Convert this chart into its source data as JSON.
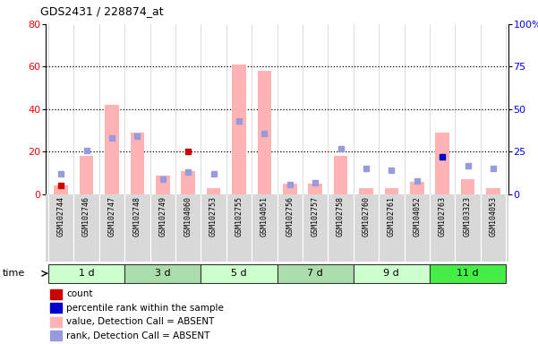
{
  "title": "GDS2431 / 228874_at",
  "samples": [
    "GSM102744",
    "GSM102746",
    "GSM102747",
    "GSM102748",
    "GSM102749",
    "GSM104060",
    "GSM102753",
    "GSM102755",
    "GSM104051",
    "GSM102756",
    "GSM102757",
    "GSM102758",
    "GSM102760",
    "GSM102761",
    "GSM104052",
    "GSM102763",
    "GSM103323",
    "GSM104053"
  ],
  "groups": [
    {
      "label": "1 d",
      "indices": [
        0,
        1,
        2
      ],
      "color": "#ccffcc"
    },
    {
      "label": "3 d",
      "indices": [
        3,
        4,
        5
      ],
      "color": "#aaddaa"
    },
    {
      "label": "5 d",
      "indices": [
        6,
        7,
        8
      ],
      "color": "#ccffcc"
    },
    {
      "label": "7 d",
      "indices": [
        9,
        10,
        11
      ],
      "color": "#aaddaa"
    },
    {
      "label": "9 d",
      "indices": [
        12,
        13,
        14
      ],
      "color": "#ccffcc"
    },
    {
      "label": "11 d",
      "indices": [
        15,
        16,
        17
      ],
      "color": "#44ee44"
    }
  ],
  "bar_values_absent": [
    4,
    18,
    42,
    29,
    9,
    11,
    3,
    61,
    58,
    5,
    5,
    18,
    3,
    3,
    6,
    29,
    7,
    3
  ],
  "rank_absent": [
    12,
    26,
    33,
    34,
    9,
    13,
    12,
    43,
    36,
    6,
    7,
    27,
    15,
    14,
    8,
    22,
    17,
    15
  ],
  "count_values": [
    4,
    null,
    null,
    null,
    null,
    20,
    null,
    null,
    null,
    null,
    null,
    null,
    null,
    null,
    null,
    null,
    null,
    null
  ],
  "percentile_rank": [
    null,
    null,
    null,
    null,
    null,
    null,
    null,
    null,
    null,
    null,
    null,
    null,
    null,
    null,
    null,
    22,
    null,
    null
  ],
  "ylim_left": [
    0,
    80
  ],
  "ylim_right": [
    0,
    100
  ],
  "yticks_left": [
    0,
    20,
    40,
    60,
    80
  ],
  "yticks_right": [
    0,
    25,
    50,
    75,
    100
  ],
  "ytick_labels_right": [
    "0",
    "25",
    "50",
    "75",
    "100%"
  ],
  "color_bar_absent": "#ffb3b3",
  "color_rank_absent": "#9999dd",
  "color_count": "#cc0000",
  "color_percentile": "#0000cc",
  "bar_width": 0.55,
  "legend_items": [
    {
      "color": "#cc0000",
      "label": "count"
    },
    {
      "color": "#0000cc",
      "label": "percentile rank within the sample"
    },
    {
      "color": "#ffb3b3",
      "label": "value, Detection Call = ABSENT"
    },
    {
      "color": "#9999dd",
      "label": "rank, Detection Call = ABSENT"
    }
  ]
}
